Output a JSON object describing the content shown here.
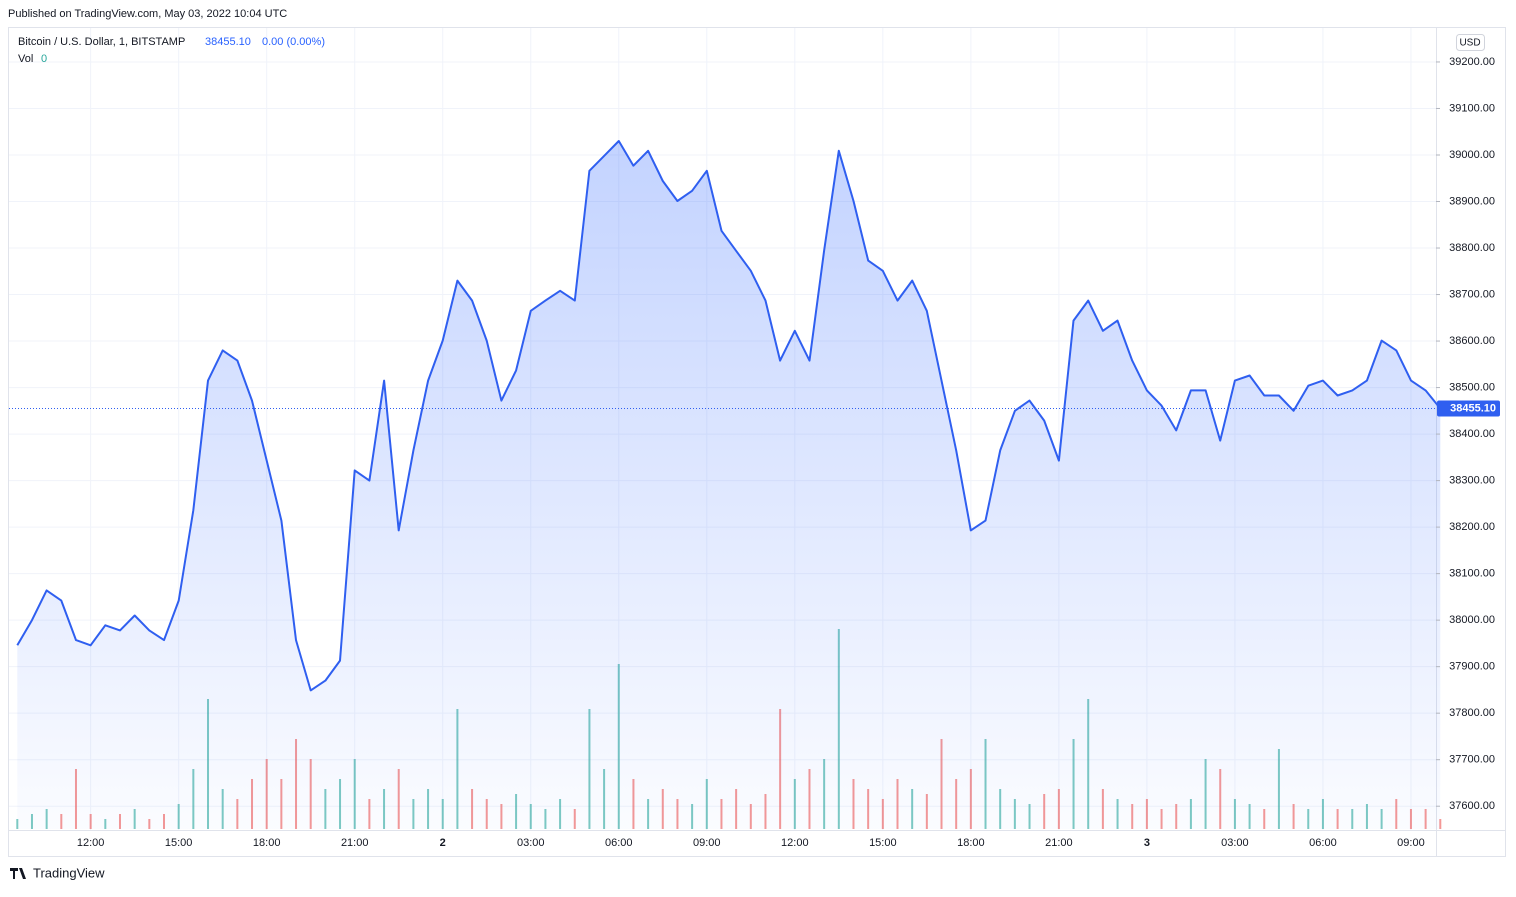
{
  "header": {
    "published": "Published on TradingView.com, May 03, 2022 10:04 UTC",
    "symbol": "Bitcoin / U.S. Dollar, 1, BITSTAMP",
    "price": "38455.10",
    "change": "0.00 (0.00%)",
    "vol_label": "Vol",
    "vol_value": 0,
    "currency": "USD",
    "footer": "TradingView"
  },
  "chart_data": {
    "type": "area",
    "color": "#2f5ff0",
    "grid": true,
    "categories": [
      null,
      null,
      null,
      null,
      null,
      "12:00",
      null,
      null,
      null,
      null,
      null,
      "15:00",
      null,
      null,
      null,
      null,
      null,
      "18:00",
      null,
      null,
      null,
      null,
      null,
      "21:00",
      null,
      null,
      null,
      null,
      null,
      "2",
      null,
      null,
      null,
      null,
      null,
      "03:00",
      null,
      null,
      null,
      null,
      null,
      "06:00",
      null,
      null,
      null,
      null,
      null,
      "09:00",
      null,
      null,
      null,
      null,
      null,
      "12:00",
      null,
      null,
      null,
      null,
      null,
      "15:00",
      null,
      null,
      null,
      null,
      null,
      "18:00",
      null,
      null,
      null,
      null,
      null,
      "21:00",
      null,
      null,
      null,
      null,
      null,
      "3",
      null,
      null,
      null,
      null,
      null,
      "03:00",
      null,
      null,
      null,
      null,
      null,
      "06:00",
      null,
      null,
      null,
      null,
      null,
      "09:00",
      null,
      null
    ],
    "values": [
      37946,
      38000,
      38064,
      38042,
      37957,
      37946,
      37989,
      37978,
      38010,
      37978,
      37957,
      38042,
      38236,
      38515,
      38580,
      38558,
      38472,
      38343,
      38214,
      37957,
      37849,
      37870,
      37913,
      38322,
      38300,
      38515,
      38193,
      38365,
      38515,
      38601,
      38730,
      38687,
      38601,
      38472,
      38537,
      38665,
      38687,
      38708,
      38687,
      38966,
      38998,
      39030,
      38977,
      39009,
      38944,
      38901,
      38923,
      38966,
      38837,
      38794,
      38751,
      38687,
      38558,
      38622,
      38558,
      38794,
      39009,
      38901,
      38773,
      38751,
      38687,
      38730,
      38665,
      38515,
      38365,
      38193,
      38214,
      38365,
      38450,
      38472,
      38429,
      38343,
      38644,
      38687,
      38622,
      38644,
      38558,
      38494,
      38461,
      38408,
      38494,
      38494,
      38386,
      38515,
      38526,
      38483,
      38483,
      38450,
      38504,
      38515,
      38483,
      38494,
      38515,
      38601,
      38580,
      38515,
      38494,
      38455.1
    ],
    "last_price": {
      "value": 38455.1,
      "label": "38455.10"
    },
    "ylim": [
      37551,
      39273
    ],
    "yticks": [
      {
        "value": 37600,
        "label": "37600.00"
      },
      {
        "value": 37700,
        "label": "37700.00"
      },
      {
        "value": 37800,
        "label": "37800.00"
      },
      {
        "value": 37900,
        "label": "37900.00"
      },
      {
        "value": 38000,
        "label": "38000.00"
      },
      {
        "value": 38100,
        "label": "38100.00"
      },
      {
        "value": 38200,
        "label": "38200.00"
      },
      {
        "value": 38300,
        "label": "38300.00"
      },
      {
        "value": 38400,
        "label": "38400.00"
      },
      {
        "value": 38500,
        "label": "38500.00"
      },
      {
        "value": 38600,
        "label": "38600.00"
      },
      {
        "value": 38700,
        "label": "38700.00"
      },
      {
        "value": 38800,
        "label": "38800.00"
      },
      {
        "value": 38900,
        "label": "38900.00"
      },
      {
        "value": 39000,
        "label": "39000.00"
      },
      {
        "value": 39100,
        "label": "39100.00"
      },
      {
        "value": 39200,
        "label": "39200.00"
      }
    ],
    "volume": {
      "up_color": "#26a69a",
      "down_color": "#ef5350",
      "values": [
        2,
        3,
        4,
        3,
        12,
        3,
        2,
        3,
        4,
        2,
        3,
        5,
        12,
        26,
        8,
        6,
        10,
        14,
        10,
        18,
        14,
        8,
        10,
        14,
        6,
        8,
        12,
        6,
        8,
        6,
        24,
        8,
        6,
        5,
        7,
        5,
        4,
        6,
        4,
        24,
        12,
        33,
        10,
        6,
        8,
        6,
        5,
        10,
        6,
        8,
        5,
        7,
        24,
        10,
        12,
        14,
        40,
        10,
        8,
        6,
        10,
        8,
        7,
        18,
        10,
        12,
        18,
        8,
        6,
        5,
        7,
        8,
        18,
        26,
        8,
        6,
        5,
        6,
        4,
        5,
        6,
        14,
        12,
        6,
        5,
        4,
        16,
        5,
        4,
        6,
        4,
        4,
        5,
        4,
        6,
        4,
        4,
        2
      ]
    }
  }
}
